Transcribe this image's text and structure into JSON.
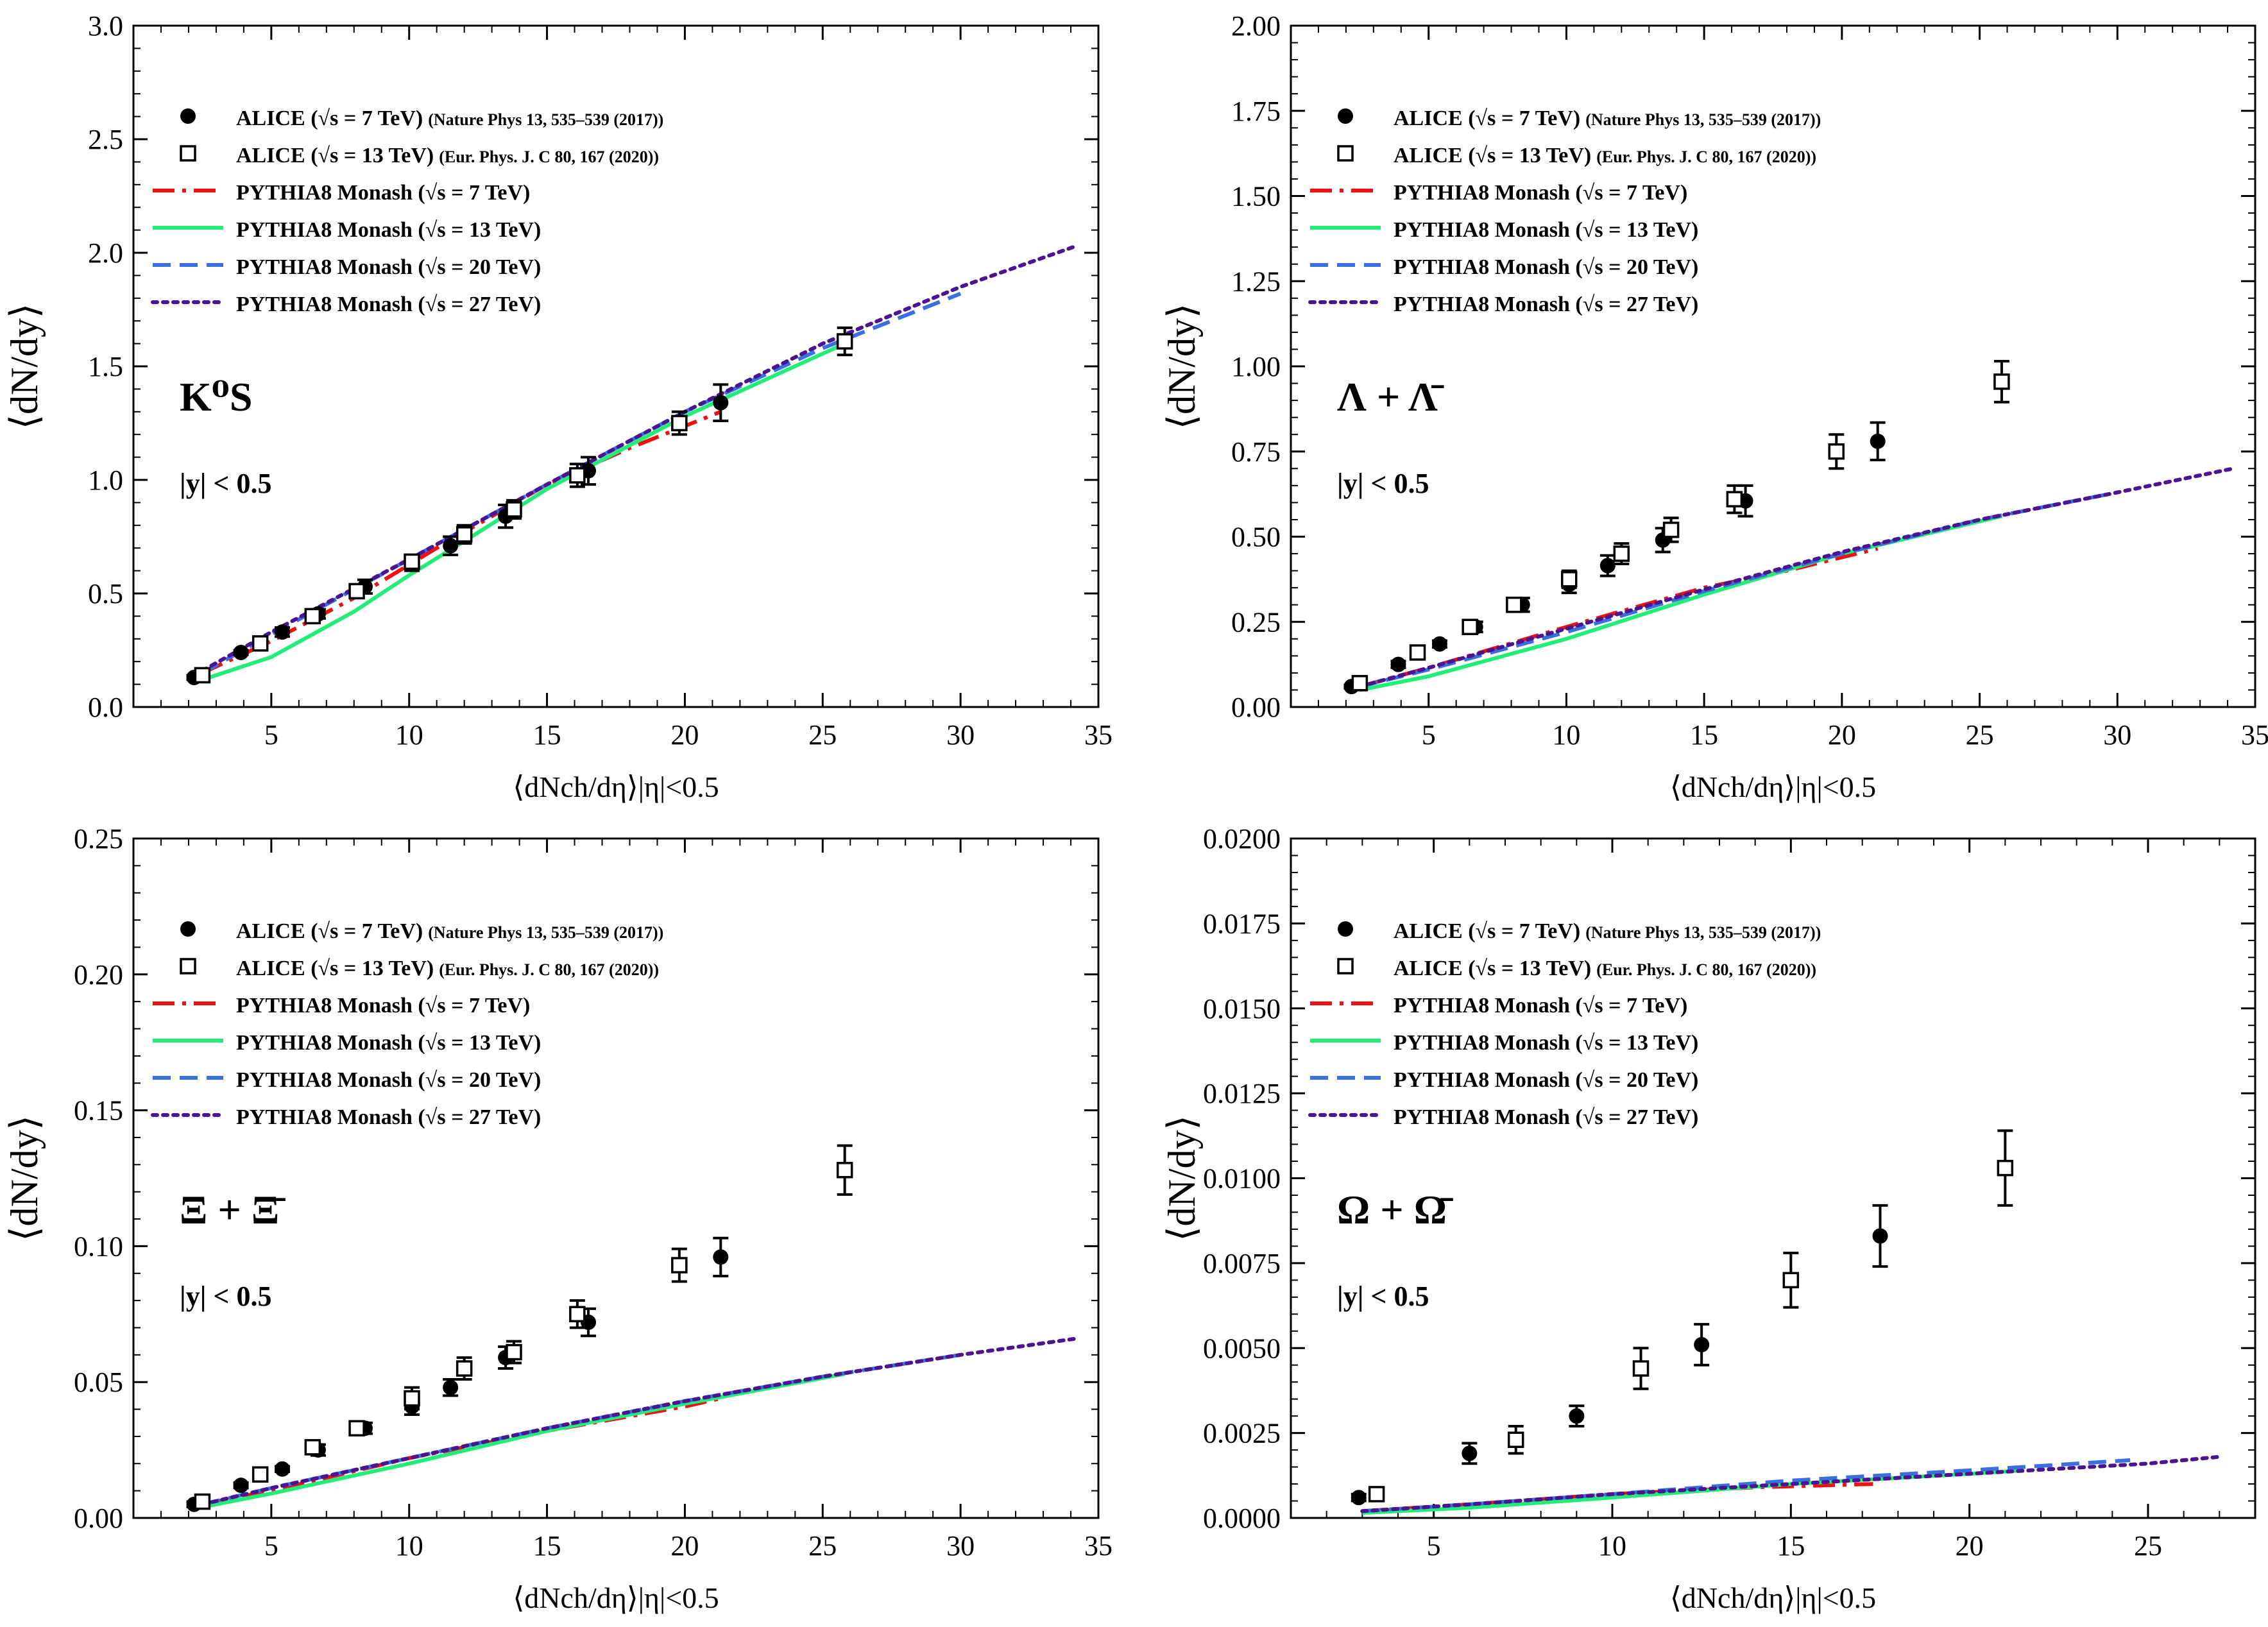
{
  "colors": {
    "alice7": "#000000",
    "alice13": "#000000",
    "pythia7": "#ee1111",
    "pythia13": "#22ee77",
    "pythia20": "#3a6fe0",
    "pythia27": "#4b1490"
  },
  "chart_data": [
    {
      "type": "scatter",
      "title": "",
      "particle_label": "K⁰S",
      "cut_label": "|y| < 0.5",
      "xlabel": "⟨dNch/dη⟩|η|<0.5",
      "ylabel": "⟨dN/dy⟩",
      "xlim": [
        0,
        35
      ],
      "ylim": [
        0,
        3.0
      ],
      "xticks": [
        "5",
        "10",
        "15",
        "20",
        "25",
        "30",
        "35"
      ],
      "yticks": [
        "0.0",
        "0.5",
        "1.0",
        "1.5",
        "2.0",
        "2.5",
        "3.0"
      ],
      "grid": false,
      "legend_position": "top-left",
      "legend": [
        {
          "label": "ALICE (√s = 7 TeV)",
          "ref": "(Nature Phys 13, 535–539 (2017))",
          "marker": "filled-circle"
        },
        {
          "label": "ALICE (√s = 13 TeV)",
          "ref": "(Eur. Phys. J. C 80, 167 (2020))",
          "marker": "open-square"
        },
        {
          "label": "PYTHIA8 Monash (√s = 7 TeV)",
          "ref": "",
          "line": "dashdot",
          "color_key": "pythia7"
        },
        {
          "label": "PYTHIA8 Monash (√s = 13 TeV)",
          "ref": "",
          "line": "solid",
          "color_key": "pythia13"
        },
        {
          "label": "PYTHIA8 Monash (√s = 20 TeV)",
          "ref": "",
          "line": "dashed",
          "color_key": "pythia20"
        },
        {
          "label": "PYTHIA8 Monash (√s = 27 TeV)",
          "ref": "",
          "line": "dotted",
          "color_key": "pythia27"
        }
      ],
      "series": [
        {
          "name": "ALICE (√s = 7 TeV)",
          "kind": "points",
          "marker": "filled-circle",
          "x": [
            2.2,
            3.9,
            5.4,
            6.7,
            8.4,
            10.1,
            11.5,
            13.5,
            16.5,
            21.3
          ],
          "y": [
            0.13,
            0.24,
            0.33,
            0.41,
            0.53,
            0.63,
            0.71,
            0.84,
            1.04,
            1.34
          ],
          "err": [
            0.01,
            0.01,
            0.02,
            0.02,
            0.03,
            0.03,
            0.04,
            0.05,
            0.06,
            0.08
          ]
        },
        {
          "name": "ALICE (√s = 13 TeV)",
          "kind": "points",
          "marker": "open-square",
          "x": [
            2.5,
            4.6,
            6.5,
            8.1,
            10.1,
            12.0,
            13.8,
            16.1,
            19.8,
            25.8
          ],
          "y": [
            0.14,
            0.28,
            0.4,
            0.51,
            0.64,
            0.76,
            0.87,
            1.02,
            1.25,
            1.61
          ],
          "err": [
            0.01,
            0.02,
            0.02,
            0.03,
            0.03,
            0.04,
            0.04,
            0.05,
            0.05,
            0.06
          ]
        },
        {
          "name": "PYTHIA8 Monash (√s = 7 TeV)",
          "kind": "line",
          "style": "dashdot",
          "color_key": "pythia7",
          "x": [
            2.5,
            5,
            8,
            11,
            15,
            18,
            21.3
          ],
          "y": [
            0.15,
            0.29,
            0.48,
            0.7,
            0.98,
            1.14,
            1.3
          ]
        },
        {
          "name": "PYTHIA8 Monash (√s = 13 TeV)",
          "kind": "line",
          "style": "solid",
          "color_key": "pythia13",
          "x": [
            2.5,
            5,
            8,
            10,
            12,
            15,
            20,
            25.8
          ],
          "y": [
            0.12,
            0.22,
            0.42,
            0.58,
            0.73,
            0.96,
            1.28,
            1.6
          ]
        },
        {
          "name": "PYTHIA8 Monash (√s = 20 TeV)",
          "kind": "line",
          "style": "dashed",
          "color_key": "pythia20",
          "x": [
            2.5,
            5,
            10,
            15,
            20,
            25,
            30
          ],
          "y": [
            0.15,
            0.32,
            0.65,
            0.98,
            1.3,
            1.58,
            1.82
          ]
        },
        {
          "name": "PYTHIA8 Monash (√s = 27 TeV)",
          "kind": "line",
          "style": "dotted",
          "color_key": "pythia27",
          "x": [
            2.5,
            5,
            10,
            15,
            20,
            25,
            30,
            34.2
          ],
          "y": [
            0.16,
            0.33,
            0.65,
            0.98,
            1.3,
            1.6,
            1.85,
            2.03
          ]
        }
      ]
    },
    {
      "type": "scatter",
      "title": "",
      "particle_label": "Λ + Λ̄",
      "cut_label": "|y| < 0.5",
      "xlabel": "⟨dNch/dη⟩|η|<0.5",
      "ylabel": "⟨dN/dy⟩",
      "xlim": [
        0,
        35
      ],
      "ylim": [
        0,
        2.0
      ],
      "xticks": [
        "5",
        "10",
        "15",
        "20",
        "25",
        "30",
        "35"
      ],
      "yticks": [
        "0.00",
        "0.25",
        "0.50",
        "0.75",
        "1.00",
        "1.25",
        "1.50",
        "1.75",
        "2.00"
      ],
      "grid": false,
      "legend_position": "top-left",
      "legend": [
        {
          "label": "ALICE (√s = 7 TeV)",
          "ref": "(Nature Phys 13, 535–539 (2017))",
          "marker": "filled-circle"
        },
        {
          "label": "ALICE (√s = 13 TeV)",
          "ref": "(Eur. Phys. J. C 80, 167 (2020))",
          "marker": "open-square"
        },
        {
          "label": "PYTHIA8 Monash (√s = 7 TeV)",
          "ref": "",
          "line": "dashdot",
          "color_key": "pythia7"
        },
        {
          "label": "PYTHIA8 Monash (√s = 13 TeV)",
          "ref": "",
          "line": "solid",
          "color_key": "pythia13"
        },
        {
          "label": "PYTHIA8 Monash (√s = 20 TeV)",
          "ref": "",
          "line": "dashed",
          "color_key": "pythia20"
        },
        {
          "label": "PYTHIA8 Monash (√s = 27 TeV)",
          "ref": "",
          "line": "dotted",
          "color_key": "pythia27"
        }
      ],
      "series": [
        {
          "name": "ALICE (√s = 7 TeV)",
          "kind": "points",
          "marker": "filled-circle",
          "x": [
            2.2,
            3.9,
            5.4,
            6.7,
            8.4,
            10.1,
            11.5,
            13.5,
            16.5,
            21.3
          ],
          "y": [
            0.06,
            0.125,
            0.185,
            0.235,
            0.3,
            0.36,
            0.415,
            0.49,
            0.605,
            0.78
          ],
          "err": [
            0.005,
            0.01,
            0.01,
            0.015,
            0.02,
            0.025,
            0.03,
            0.035,
            0.045,
            0.055
          ]
        },
        {
          "name": "ALICE (√s = 13 TeV)",
          "kind": "points",
          "marker": "open-square",
          "x": [
            2.5,
            4.6,
            6.5,
            8.1,
            10.1,
            12.0,
            13.8,
            16.1,
            19.8,
            25.8
          ],
          "y": [
            0.07,
            0.16,
            0.235,
            0.3,
            0.375,
            0.45,
            0.52,
            0.61,
            0.75,
            0.955
          ],
          "err": [
            0.005,
            0.01,
            0.015,
            0.02,
            0.025,
            0.03,
            0.035,
            0.04,
            0.05,
            0.06
          ]
        },
        {
          "name": "PYTHIA8 Monash (√s = 7 TeV)",
          "kind": "line",
          "style": "dashdot",
          "color_key": "pythia7",
          "x": [
            2.5,
            5,
            10,
            15,
            18,
            21.3
          ],
          "y": [
            0.06,
            0.115,
            0.235,
            0.35,
            0.4,
            0.465
          ]
        },
        {
          "name": "PYTHIA8 Monash (√s = 13 TeV)",
          "kind": "line",
          "style": "solid",
          "color_key": "pythia13",
          "x": [
            2.5,
            5,
            10,
            15,
            20,
            25.8
          ],
          "y": [
            0.05,
            0.09,
            0.2,
            0.33,
            0.45,
            0.56
          ]
        },
        {
          "name": "PYTHIA8 Monash (√s = 20 TeV)",
          "kind": "line",
          "style": "dashed",
          "color_key": "pythia20",
          "x": [
            2.5,
            5,
            10,
            15,
            20,
            25,
            30
          ],
          "y": [
            0.06,
            0.11,
            0.22,
            0.34,
            0.45,
            0.55,
            0.63
          ]
        },
        {
          "name": "PYTHIA8 Monash (√s = 27 TeV)",
          "kind": "line",
          "style": "dotted",
          "color_key": "pythia27",
          "x": [
            2.5,
            5,
            10,
            15,
            20,
            25,
            30,
            34.2
          ],
          "y": [
            0.06,
            0.115,
            0.23,
            0.345,
            0.455,
            0.55,
            0.63,
            0.7
          ]
        }
      ]
    },
    {
      "type": "scatter",
      "title": "",
      "particle_label": "Ξ + Ξ̄",
      "cut_label": "|y| < 0.5",
      "xlabel": "⟨dNch/dη⟩|η|<0.5",
      "ylabel": "⟨dN/dy⟩",
      "xlim": [
        0,
        35
      ],
      "ylim": [
        0,
        0.25
      ],
      "xticks": [
        "5",
        "10",
        "15",
        "20",
        "25",
        "30",
        "35"
      ],
      "yticks": [
        "0.00",
        "0.05",
        "0.10",
        "0.15",
        "0.20",
        "0.25"
      ],
      "grid": false,
      "legend_position": "top-left",
      "legend": [
        {
          "label": "ALICE (√s = 7 TeV)",
          "ref": "(Nature Phys 13, 535–539 (2017))",
          "marker": "filled-circle"
        },
        {
          "label": "ALICE (√s = 13 TeV)",
          "ref": "(Eur. Phys. J. C 80, 167 (2020))",
          "marker": "open-square"
        },
        {
          "label": "PYTHIA8 Monash (√s = 7 TeV)",
          "ref": "",
          "line": "dashdot",
          "color_key": "pythia7"
        },
        {
          "label": "PYTHIA8 Monash (√s = 13 TeV)",
          "ref": "",
          "line": "solid",
          "color_key": "pythia13"
        },
        {
          "label": "PYTHIA8 Monash (√s = 20 TeV)",
          "ref": "",
          "line": "dashed",
          "color_key": "pythia20"
        },
        {
          "label": "PYTHIA8 Monash (√s = 27 TeV)",
          "ref": "",
          "line": "dotted",
          "color_key": "pythia27"
        }
      ],
      "series": [
        {
          "name": "ALICE (√s = 7 TeV)",
          "kind": "points",
          "marker": "filled-circle",
          "x": [
            2.2,
            3.9,
            5.4,
            6.7,
            8.4,
            10.1,
            11.5,
            13.5,
            16.5,
            21.3
          ],
          "y": [
            0.005,
            0.012,
            0.018,
            0.025,
            0.033,
            0.041,
            0.048,
            0.059,
            0.072,
            0.096
          ],
          "err": [
            0.001,
            0.001,
            0.001,
            0.002,
            0.002,
            0.003,
            0.003,
            0.004,
            0.005,
            0.007
          ]
        },
        {
          "name": "ALICE (√s = 13 TeV)",
          "kind": "points",
          "marker": "open-square",
          "x": [
            2.5,
            4.6,
            6.5,
            8.1,
            10.1,
            12.0,
            13.8,
            16.1,
            19.8,
            25.8
          ],
          "y": [
            0.006,
            0.016,
            0.026,
            0.033,
            0.044,
            0.055,
            0.061,
            0.075,
            0.093,
            0.128
          ],
          "err": [
            0.001,
            0.001,
            0.002,
            0.002,
            0.004,
            0.004,
            0.004,
            0.005,
            0.006,
            0.009
          ]
        },
        {
          "name": "PYTHIA8 Monash (√s = 7 TeV)",
          "kind": "line",
          "style": "dashdot",
          "color_key": "pythia7",
          "x": [
            2.5,
            5,
            10,
            15,
            20,
            21.3
          ],
          "y": [
            0.005,
            0.01,
            0.022,
            0.032,
            0.041,
            0.044
          ]
        },
        {
          "name": "PYTHIA8 Monash (√s = 13 TeV)",
          "kind": "line",
          "style": "solid",
          "color_key": "pythia13",
          "x": [
            2.5,
            5,
            10,
            15,
            20,
            25.8
          ],
          "y": [
            0.004,
            0.009,
            0.02,
            0.032,
            0.042,
            0.053
          ]
        },
        {
          "name": "PYTHIA8 Monash (√s = 20 TeV)",
          "kind": "line",
          "style": "dashed",
          "color_key": "pythia20",
          "x": [
            2.5,
            5,
            10,
            15,
            20,
            25,
            30
          ],
          "y": [
            0.005,
            0.011,
            0.022,
            0.033,
            0.043,
            0.052,
            0.06
          ]
        },
        {
          "name": "PYTHIA8 Monash (√s = 27 TeV)",
          "kind": "line",
          "style": "dotted",
          "color_key": "pythia27",
          "x": [
            2.5,
            5,
            10,
            15,
            20,
            25,
            30,
            34.2
          ],
          "y": [
            0.005,
            0.011,
            0.022,
            0.033,
            0.043,
            0.052,
            0.06,
            0.066
          ]
        }
      ]
    },
    {
      "type": "scatter",
      "title": "",
      "particle_label": "Ω + Ω̄",
      "cut_label": "|y| < 0.5",
      "xlabel": "⟨dNch/dη⟩|η|<0.5",
      "ylabel": "⟨dN/dy⟩",
      "xlim": [
        1,
        28
      ],
      "ylim": [
        0,
        0.02
      ],
      "xticks": [
        "5",
        "10",
        "15",
        "20",
        "25"
      ],
      "yticks": [
        "0.0000",
        "0.0025",
        "0.0050",
        "0.0075",
        "0.0100",
        "0.0125",
        "0.0150",
        "0.0175",
        "0.0200"
      ],
      "grid": false,
      "legend_position": "top-left",
      "legend": [
        {
          "label": "ALICE (√s = 7 TeV)",
          "ref": "(Nature Phys 13, 535–539 (2017))",
          "marker": "filled-circle"
        },
        {
          "label": "ALICE (√s = 13 TeV)",
          "ref": "(Eur. Phys. J. C 80, 167 (2020))",
          "marker": "open-square"
        },
        {
          "label": "PYTHIA8 Monash (√s = 7 TeV)",
          "ref": "",
          "line": "dashdot",
          "color_key": "pythia7"
        },
        {
          "label": "PYTHIA8 Monash (√s = 13 TeV)",
          "ref": "",
          "line": "solid",
          "color_key": "pythia13"
        },
        {
          "label": "PYTHIA8 Monash (√s = 20 TeV)",
          "ref": "",
          "line": "dashed",
          "color_key": "pythia20"
        },
        {
          "label": "PYTHIA8 Monash (√s = 27 TeV)",
          "ref": "",
          "line": "dotted",
          "color_key": "pythia27"
        }
      ],
      "series": [
        {
          "name": "ALICE (√s = 7 TeV)",
          "kind": "points",
          "marker": "filled-circle",
          "x": [
            2.9,
            6.0,
            9.0,
            12.5,
            17.5
          ],
          "y": [
            0.0006,
            0.0019,
            0.003,
            0.0051,
            0.0083
          ],
          "err": [
            0.0001,
            0.0003,
            0.0003,
            0.0006,
            0.0009
          ]
        },
        {
          "name": "ALICE (√s = 13 TeV)",
          "kind": "points",
          "marker": "open-square",
          "x": [
            3.4,
            7.3,
            10.8,
            15.0,
            21.0
          ],
          "y": [
            0.0007,
            0.0023,
            0.0044,
            0.007,
            0.0103
          ],
          "err": [
            0.0001,
            0.0004,
            0.0006,
            0.0008,
            0.0011
          ]
        },
        {
          "name": "PYTHIA8 Monash (√s = 7 TeV)",
          "kind": "line",
          "style": "dashdot",
          "color_key": "pythia7",
          "x": [
            3,
            6,
            10,
            14,
            17.3
          ],
          "y": [
            0.0002,
            0.0004,
            0.0007,
            0.0009,
            0.001
          ]
        },
        {
          "name": "PYTHIA8 Monash (√s = 13 TeV)",
          "kind": "line",
          "style": "solid",
          "color_key": "pythia13",
          "x": [
            3,
            6,
            10,
            15,
            20,
            21.5
          ],
          "y": [
            0.00015,
            0.0003,
            0.0006,
            0.001,
            0.0013,
            0.0014
          ]
        },
        {
          "name": "PYTHIA8 Monash (√s = 20 TeV)",
          "kind": "line",
          "style": "dashed",
          "color_key": "pythia20",
          "x": [
            3,
            6,
            10,
            15,
            20,
            24.5
          ],
          "y": [
            0.0002,
            0.0004,
            0.0007,
            0.0011,
            0.0014,
            0.0017
          ]
        },
        {
          "name": "PYTHIA8 Monash (√s = 27 TeV)",
          "kind": "line",
          "style": "dotted",
          "color_key": "pythia27",
          "x": [
            3,
            6,
            10,
            15,
            20,
            25,
            27
          ],
          "y": [
            0.0002,
            0.0004,
            0.0007,
            0.001,
            0.0013,
            0.0016,
            0.0018
          ]
        }
      ]
    }
  ]
}
